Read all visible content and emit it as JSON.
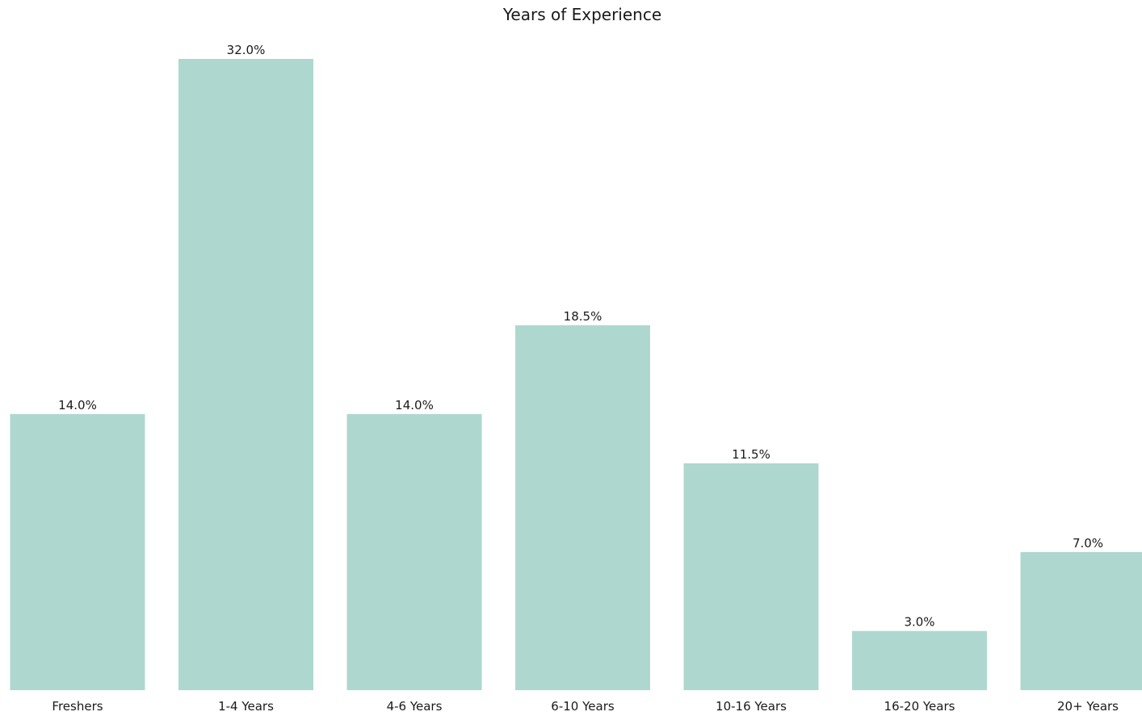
{
  "chart_data": {
    "type": "bar",
    "title": "Years of Experience",
    "xlabel": "",
    "ylabel": "",
    "categories": [
      "Freshers",
      "1-4 Years",
      "4-6 Years",
      "6-10 Years",
      "10-16 Years",
      "16-20 Years",
      "20+ Years"
    ],
    "values": [
      14.0,
      32.0,
      14.0,
      18.5,
      11.5,
      3.0,
      7.0
    ],
    "value_labels": [
      "14.0%",
      "32.0%",
      "14.0%",
      "18.5%",
      "11.5%",
      "3.0%",
      "7.0%"
    ],
    "ylim": [
      0,
      32
    ],
    "grid": false,
    "bar_color": "#aed8cf",
    "text_color": "#1a1a1a"
  }
}
